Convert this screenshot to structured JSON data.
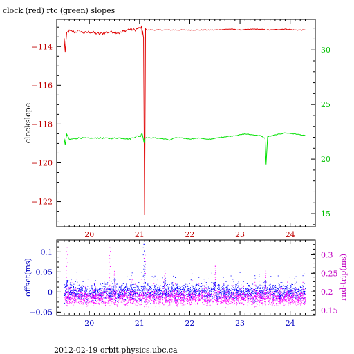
{
  "page": {
    "title": "clock (red) rtc (green) slopes",
    "footer": "2012-02-19 orbit.physics.ubc.ca"
  },
  "colors": {
    "clock": "#e00000",
    "rtc": "#00e000",
    "offset": "#0000ff",
    "rndtrip": "#ff00ff",
    "axes": "#000000",
    "tick_left_top": "#c00000",
    "tick_right_top": "#00c000",
    "tick_left_bottom": "#0000c0",
    "tick_right_bottom": "#c000c0"
  },
  "chart_data": [
    {
      "type": "line",
      "title": "clock (red) rtc (green) slopes",
      "xlabel": "",
      "xlim": [
        19.35,
        24.5
      ],
      "x_ticks": [
        20,
        21,
        22,
        23,
        24
      ],
      "ylabel": "clockslope",
      "ylim": [
        -123.3,
        -112.6
      ],
      "y_ticks": [
        -114,
        -116,
        -118,
        -120,
        -122
      ],
      "y2label": "",
      "y2lim": [
        13.8,
        32.8
      ],
      "y2_ticks": [
        15,
        20,
        25,
        30
      ],
      "series": [
        {
          "name": "clock",
          "axis": "left",
          "x": [
            19.5,
            19.52,
            19.55,
            19.6,
            19.7,
            19.8,
            19.9,
            20.0,
            20.1,
            20.2,
            20.3,
            20.4,
            20.5,
            20.6,
            20.7,
            20.8,
            20.9,
            21.0,
            21.04,
            21.05,
            21.06,
            21.08,
            21.1,
            21.12,
            21.15,
            21.3,
            21.6,
            21.9,
            22.2,
            22.5,
            22.8,
            23.0,
            23.3,
            23.6,
            23.9,
            24.1,
            24.3
          ],
          "y": [
            -113.6,
            -114.3,
            -113.3,
            -113.2,
            -113.25,
            -113.2,
            -113.3,
            -113.25,
            -113.3,
            -113.35,
            -113.3,
            -113.25,
            -113.25,
            -113.3,
            -113.2,
            -113.1,
            -113.15,
            -113.05,
            -113.0,
            -113.4,
            -113.2,
            -113.6,
            -122.7,
            -113.1,
            -113.15,
            -113.15,
            -113.15,
            -113.15,
            -113.15,
            -113.15,
            -113.1,
            -113.15,
            -113.1,
            -113.15,
            -113.1,
            -113.15,
            -113.15
          ]
        },
        {
          "name": "rtc",
          "axis": "right",
          "x": [
            19.5,
            19.52,
            19.55,
            19.6,
            19.8,
            20.0,
            20.2,
            20.4,
            20.6,
            20.8,
            20.95,
            21.02,
            21.05,
            21.07,
            21.09,
            21.1,
            21.3,
            21.5,
            21.6,
            21.7,
            21.8,
            22.0,
            22.2,
            22.35,
            22.5,
            22.7,
            22.9,
            23.1,
            23.2,
            23.4,
            23.5,
            23.52,
            23.55,
            23.7,
            23.9,
            24.1,
            24.3
          ],
          "y": [
            21.9,
            21.3,
            22.3,
            21.8,
            21.95,
            21.9,
            21.95,
            21.9,
            21.95,
            21.85,
            22.1,
            22.1,
            22.4,
            22.0,
            21.5,
            21.95,
            21.95,
            21.85,
            21.75,
            21.95,
            21.95,
            21.85,
            21.95,
            21.8,
            21.9,
            22.05,
            22.15,
            22.3,
            22.25,
            22.15,
            21.9,
            19.5,
            22.05,
            22.2,
            22.4,
            22.3,
            22.15
          ]
        }
      ]
    },
    {
      "type": "scatter",
      "title": "",
      "xlabel": "",
      "xlim": [
        19.35,
        24.5
      ],
      "x_ticks": [
        20,
        21,
        22,
        23,
        24
      ],
      "ylabel": "offset(ms)",
      "ylim": [
        -0.058,
        0.13
      ],
      "y_ticks": [
        0.1,
        0.05,
        0,
        -0.05
      ],
      "y_tick_labels": [
        "0.1",
        "0.05",
        "0",
        "-0.05"
      ],
      "y2label": "rnd-trip(ms)",
      "y2lim": [
        0.137,
        0.34
      ],
      "y2_ticks": [
        0.15,
        0.2,
        0.25,
        0.3
      ],
      "y2_tick_labels": [
        "0.15",
        "0.2",
        "0.25",
        "0.3"
      ],
      "series": [
        {
          "name": "offset",
          "axis": "left",
          "x_range": [
            19.5,
            24.3
          ],
          "typical_range": [
            -0.015,
            0.015
          ],
          "spikes": [
            {
              "x": 19.55,
              "y": 0.03
            },
            {
              "x": 20.5,
              "y": 0.035
            },
            {
              "x": 21.08,
              "y": 0.12
            },
            {
              "x": 21.1,
              "y": 0.07
            },
            {
              "x": 21.5,
              "y": 0.035
            },
            {
              "x": 22.5,
              "y": 0.025
            },
            {
              "x": 23.5,
              "y": 0.03
            }
          ]
        },
        {
          "name": "rnd-trip",
          "axis": "right",
          "x_range": [
            19.5,
            24.3
          ],
          "typical_range": [
            0.17,
            0.2
          ],
          "spikes": [
            {
              "x": 19.55,
              "y": 0.32
            },
            {
              "x": 20.4,
              "y": 0.32
            },
            {
              "x": 20.5,
              "y": 0.26
            },
            {
              "x": 21.1,
              "y": 0.3
            },
            {
              "x": 21.5,
              "y": 0.26
            },
            {
              "x": 22.5,
              "y": 0.27
            },
            {
              "x": 23.5,
              "y": 0.26
            }
          ]
        }
      ]
    }
  ]
}
